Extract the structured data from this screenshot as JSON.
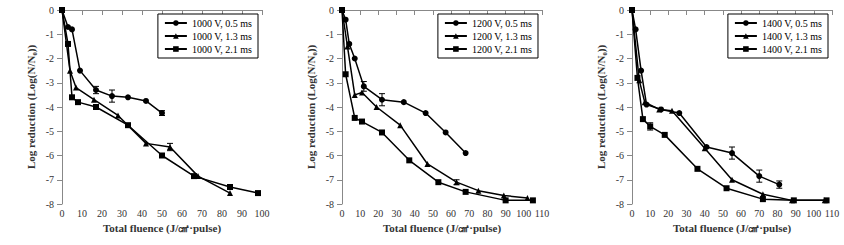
{
  "chart_data": [
    {
      "type": "line",
      "x_label": "Total fluence (J/㎠·pulse)",
      "y_label": "Log reduction (Log(N/N₀))",
      "xlim": [
        0,
        100
      ],
      "xticks": [
        0,
        10,
        20,
        30,
        40,
        50,
        60,
        70,
        80,
        90,
        100
      ],
      "ylim": [
        -8,
        0
      ],
      "yticks": [
        -8,
        -7,
        -6,
        -5,
        -4,
        -3,
        -2,
        -1,
        0
      ],
      "legend": "upper right",
      "series": [
        {
          "name": "1000 V, 0.5 ms",
          "color": "#000000",
          "marker": "circle",
          "x": [
            0,
            3,
            5,
            9,
            17,
            25,
            33,
            42,
            50
          ],
          "values": [
            0,
            -0.7,
            -0.8,
            -2.5,
            -3.3,
            -3.55,
            -3.6,
            -3.75,
            -4.25
          ],
          "errors": [
            null,
            null,
            null,
            null,
            0.15,
            0.25,
            null,
            null,
            0.1
          ]
        },
        {
          "name": "1000 V, 1.3 ms",
          "color": "#000000",
          "marker": "triangle",
          "x": [
            0,
            4,
            7,
            16,
            28,
            42,
            54,
            68,
            84
          ],
          "values": [
            0,
            -2.5,
            -3.2,
            -3.7,
            -4.35,
            -5.5,
            -5.65,
            -6.85,
            -7.55
          ],
          "errors": [
            null,
            null,
            null,
            null,
            null,
            null,
            0.15,
            null,
            null
          ]
        },
        {
          "name": "1000 V, 2.1 ms",
          "color": "#000000",
          "marker": "square",
          "x": [
            0,
            3,
            5,
            8,
            17,
            33,
            50,
            66,
            84,
            98
          ],
          "values": [
            0,
            -1.4,
            -3.6,
            -3.8,
            -4.0,
            -4.75,
            -6.0,
            -6.85,
            -7.3,
            -7.55
          ],
          "errors": [
            null,
            null,
            null,
            null,
            null,
            null,
            null,
            null,
            null,
            null
          ]
        }
      ]
    },
    {
      "type": "line",
      "x_label": "Total fluence (J/㎠·pulse)",
      "y_label": "Log reduction (Log(N/N₀))",
      "xlim": [
        0,
        110
      ],
      "xticks": [
        0,
        10,
        20,
        30,
        40,
        50,
        60,
        70,
        80,
        90,
        100,
        110
      ],
      "ylim": [
        -8,
        0
      ],
      "yticks": [
        -8,
        -7,
        -6,
        -5,
        -4,
        -3,
        -2,
        -1,
        0
      ],
      "legend": "upper right",
      "series": [
        {
          "name": "1200 V, 0.5 ms",
          "color": "#000000",
          "marker": "circle",
          "x": [
            0,
            2,
            4,
            7,
            12,
            22,
            34,
            46,
            57,
            68
          ],
          "values": [
            0,
            -0.4,
            -1.4,
            -2.0,
            -3.15,
            -3.7,
            -3.8,
            -4.25,
            -5.05,
            -5.9
          ],
          "errors": [
            null,
            null,
            null,
            null,
            0.2,
            0.25,
            null,
            null,
            null,
            null
          ]
        },
        {
          "name": "1200 V, 1.3 ms",
          "color": "#000000",
          "marker": "triangle",
          "x": [
            0,
            3,
            7,
            11,
            19,
            32,
            47,
            63,
            75,
            89,
            102
          ],
          "values": [
            0,
            -1.5,
            -3.5,
            -3.4,
            -4.0,
            -4.75,
            -6.35,
            -7.1,
            -7.45,
            -7.65,
            -7.75
          ],
          "errors": [
            null,
            null,
            null,
            null,
            null,
            null,
            null,
            0.1,
            null,
            null,
            null
          ]
        },
        {
          "name": "1200 V, 2.1 ms",
          "color": "#000000",
          "marker": "square",
          "x": [
            0,
            2,
            7,
            11,
            22,
            37,
            53,
            68,
            90,
            105
          ],
          "values": [
            0,
            -2.65,
            -4.45,
            -4.6,
            -5.05,
            -6.2,
            -7.1,
            -7.5,
            -7.85,
            -7.85
          ],
          "errors": [
            null,
            null,
            null,
            null,
            null,
            null,
            null,
            null,
            null,
            null
          ]
        }
      ]
    },
    {
      "type": "line",
      "x_label": "Total fluence (J/㎠·pulse)",
      "y_label": "Log reduction (Log(N/N₀))",
      "xlim": [
        0,
        110
      ],
      "xticks": [
        0,
        10,
        20,
        30,
        40,
        50,
        60,
        70,
        80,
        90,
        100,
        110
      ],
      "ylim": [
        -8,
        0
      ],
      "yticks": [
        -8,
        -7,
        -6,
        -5,
        -4,
        -3,
        -2,
        -1,
        0
      ],
      "legend": "upper right",
      "series": [
        {
          "name": "1400 V, 0.5 ms",
          "color": "#000000",
          "marker": "circle",
          "x": [
            0,
            2,
            5,
            8,
            16,
            26,
            41,
            55,
            70,
            81
          ],
          "values": [
            0,
            -0.8,
            -2.5,
            -3.9,
            -4.1,
            -4.25,
            -5.65,
            -5.9,
            -6.85,
            -7.2
          ],
          "errors": [
            null,
            null,
            null,
            null,
            null,
            null,
            null,
            0.25,
            0.25,
            0.15
          ]
        },
        {
          "name": "1400 V, 1.3 ms",
          "color": "#000000",
          "marker": "triangle",
          "x": [
            0,
            4,
            7,
            15,
            22,
            40,
            55,
            72,
            88,
            106
          ],
          "values": [
            0,
            -2.9,
            -3.8,
            -4.1,
            -4.15,
            -5.7,
            -7.0,
            -7.6,
            -7.85,
            -7.85
          ],
          "errors": [
            null,
            null,
            null,
            null,
            null,
            null,
            null,
            null,
            null,
            null
          ]
        },
        {
          "name": "1400 V, 2.1 ms",
          "color": "#000000",
          "marker": "square",
          "x": [
            0,
            3,
            6,
            10,
            18,
            36,
            52,
            72,
            89,
            107
          ],
          "values": [
            0,
            -2.8,
            -4.5,
            -4.8,
            -5.15,
            -6.55,
            -7.35,
            -7.8,
            -7.85,
            -7.85
          ],
          "errors": [
            null,
            null,
            null,
            0.15,
            null,
            null,
            null,
            null,
            null,
            null
          ]
        }
      ]
    }
  ]
}
